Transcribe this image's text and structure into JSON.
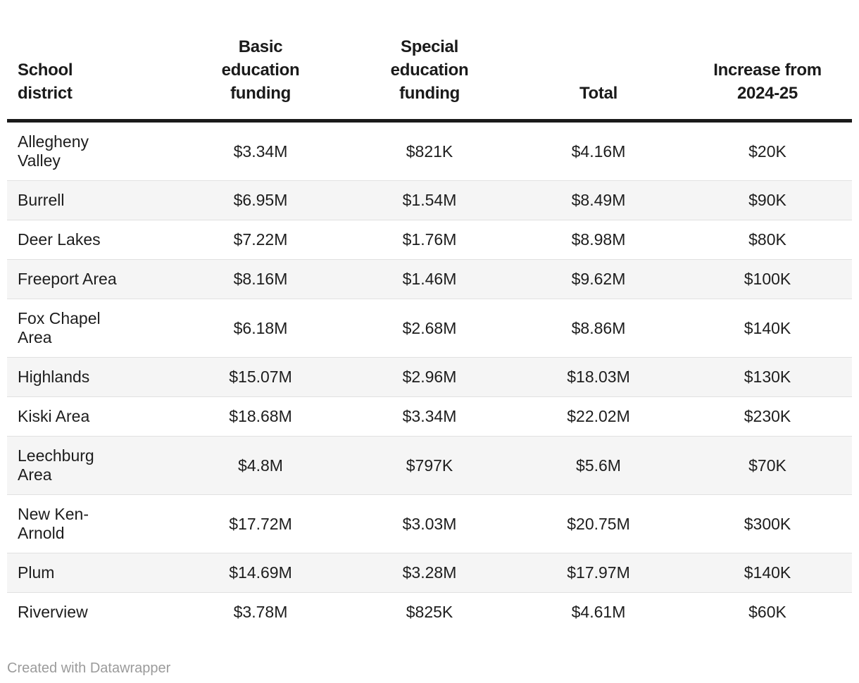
{
  "chart_data": {
    "type": "table",
    "columns": [
      "School district",
      "Basic education funding",
      "Special education funding",
      "Total",
      "Increase from 2024-25"
    ],
    "rows": [
      [
        "Allegheny Valley",
        "$3.34M",
        "$821K",
        "$4.16M",
        "$20K"
      ],
      [
        "Burrell",
        "$6.95M",
        "$1.54M",
        "$8.49M",
        "$90K"
      ],
      [
        "Deer Lakes",
        "$7.22M",
        "$1.76M",
        "$8.98M",
        "$80K"
      ],
      [
        "Freeport Area",
        "$8.16M",
        "$1.46M",
        "$9.62M",
        "$100K"
      ],
      [
        "Fox Chapel Area",
        "$6.18M",
        "$2.68M",
        "$8.86M",
        "$140K"
      ],
      [
        "Highlands",
        "$15.07M",
        "$2.96M",
        "$18.03M",
        "$130K"
      ],
      [
        "Kiski Area",
        "$18.68M",
        "$3.34M",
        "$22.02M",
        "$230K"
      ],
      [
        "Leechburg Area",
        "$4.8M",
        "$797K",
        "$5.6M",
        "$70K"
      ],
      [
        "New Ken-Arnold",
        "$17.72M",
        "$3.03M",
        "$20.75M",
        "$300K"
      ],
      [
        "Plum",
        "$14.69M",
        "$3.28M",
        "$17.97M",
        "$140K"
      ],
      [
        "Riverview",
        "$3.78M",
        "$825K",
        "$4.61M",
        "$60K"
      ]
    ],
    "striped_row_indices": [
      1,
      3,
      5,
      7,
      9
    ],
    "layout": {
      "first_column_align": "left",
      "value_columns_align": "center",
      "header_valign": "bottom",
      "grid": "horizontal-only",
      "legend": "none"
    }
  },
  "footer": {
    "attribution": "Created with Datawrapper"
  },
  "colors": {
    "text": "#1d1d1d",
    "header_rule": "#1a1a1a",
    "row_stripe": "#f5f5f5",
    "row_divider": "#e1e1e1",
    "attribution_text": "#9b9b9b",
    "background": "#ffffff"
  }
}
